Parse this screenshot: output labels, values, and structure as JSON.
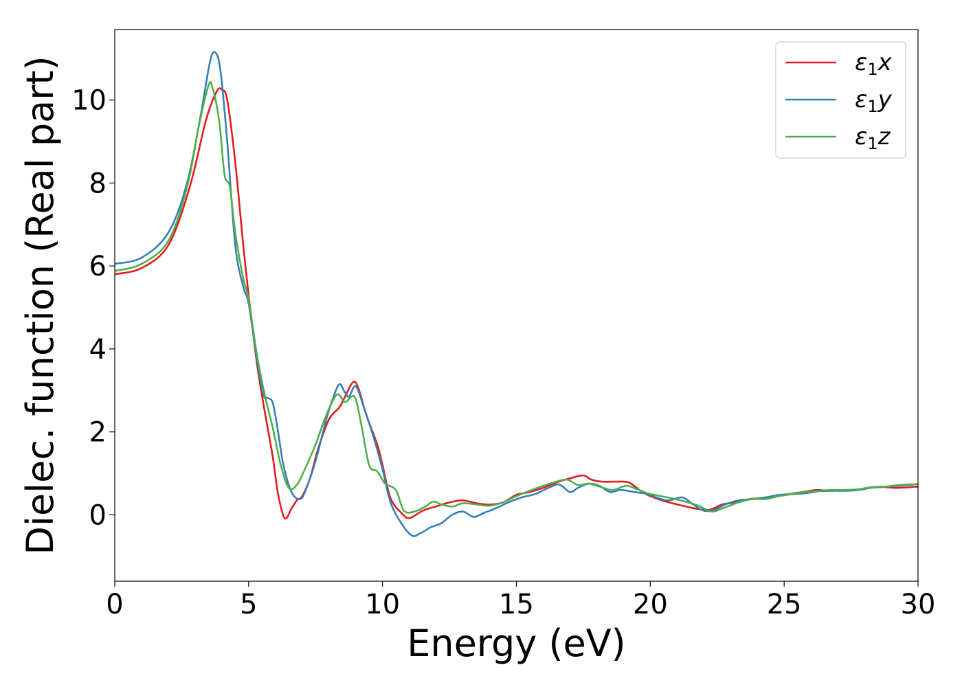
{
  "chart_data": {
    "type": "line",
    "title": "",
    "xlabel": "Energy (eV)",
    "ylabel": "Dielec. function (Real part)",
    "xlim": [
      0,
      30
    ],
    "ylim": [
      -1.6,
      11.7
    ],
    "xticks": [
      0,
      5,
      10,
      15,
      20,
      25,
      30
    ],
    "yticks": [
      0,
      2,
      4,
      6,
      8,
      10
    ],
    "grid": false,
    "legend_position": "top-right",
    "series": [
      {
        "name": "ε1x",
        "legend_base": "ε",
        "legend_sub": "1",
        "legend_suffix": "x",
        "color": "#e41a1c",
        "points": [
          [
            0,
            5.8
          ],
          [
            1,
            5.95
          ],
          [
            2,
            6.5
          ],
          [
            2.8,
            7.9
          ],
          [
            3.4,
            9.5
          ],
          [
            3.8,
            10.2
          ],
          [
            4.0,
            10.25
          ],
          [
            4.2,
            10.0
          ],
          [
            4.5,
            8.5
          ],
          [
            4.8,
            6.5
          ],
          [
            5.0,
            5.3
          ],
          [
            5.3,
            3.7
          ],
          [
            5.6,
            2.5
          ],
          [
            5.9,
            1.4
          ],
          [
            6.1,
            0.5
          ],
          [
            6.35,
            -0.08
          ],
          [
            6.6,
            0.15
          ],
          [
            6.8,
            0.35
          ],
          [
            7.0,
            0.45
          ],
          [
            7.3,
            0.9
          ],
          [
            7.6,
            1.6
          ],
          [
            8.0,
            2.3
          ],
          [
            8.4,
            2.6
          ],
          [
            8.6,
            2.85
          ],
          [
            8.9,
            3.2
          ],
          [
            9.1,
            3.05
          ],
          [
            9.4,
            2.4
          ],
          [
            9.8,
            1.7
          ],
          [
            10.0,
            1.2
          ],
          [
            10.3,
            0.4
          ],
          [
            10.7,
            0.05
          ],
          [
            11.0,
            -0.08
          ],
          [
            11.5,
            0.1
          ],
          [
            12.0,
            0.2
          ],
          [
            12.5,
            0.3
          ],
          [
            13.0,
            0.35
          ],
          [
            13.5,
            0.28
          ],
          [
            14.0,
            0.25
          ],
          [
            14.5,
            0.3
          ],
          [
            15.0,
            0.48
          ],
          [
            15.5,
            0.55
          ],
          [
            16.0,
            0.65
          ],
          [
            16.5,
            0.78
          ],
          [
            17.0,
            0.88
          ],
          [
            17.5,
            0.95
          ],
          [
            17.8,
            0.85
          ],
          [
            18.2,
            0.8
          ],
          [
            18.7,
            0.8
          ],
          [
            19.2,
            0.78
          ],
          [
            19.7,
            0.55
          ],
          [
            20.2,
            0.4
          ],
          [
            20.7,
            0.3
          ],
          [
            21.2,
            0.22
          ],
          [
            21.7,
            0.15
          ],
          [
            22.2,
            0.12
          ],
          [
            22.7,
            0.25
          ],
          [
            23.2,
            0.3
          ],
          [
            23.7,
            0.38
          ],
          [
            24.2,
            0.4
          ],
          [
            24.7,
            0.45
          ],
          [
            25.2,
            0.5
          ],
          [
            25.7,
            0.55
          ],
          [
            26.2,
            0.6
          ],
          [
            26.7,
            0.58
          ],
          [
            27.2,
            0.6
          ],
          [
            27.7,
            0.6
          ],
          [
            28.2,
            0.65
          ],
          [
            28.7,
            0.67
          ],
          [
            29.2,
            0.65
          ],
          [
            30,
            0.68
          ]
        ]
      },
      {
        "name": "ε1y",
        "legend_base": "ε",
        "legend_sub": "1",
        "legend_suffix": "y",
        "color": "#377eb8",
        "points": [
          [
            0,
            6.05
          ],
          [
            1,
            6.2
          ],
          [
            2,
            6.8
          ],
          [
            2.7,
            8.0
          ],
          [
            3.2,
            9.6
          ],
          [
            3.55,
            10.9
          ],
          [
            3.75,
            11.15
          ],
          [
            3.95,
            10.7
          ],
          [
            4.2,
            9.0
          ],
          [
            4.5,
            6.5
          ],
          [
            4.8,
            5.5
          ],
          [
            5.0,
            5.1
          ],
          [
            5.3,
            3.8
          ],
          [
            5.55,
            2.9
          ],
          [
            5.7,
            2.82
          ],
          [
            5.9,
            2.7
          ],
          [
            6.1,
            2.0
          ],
          [
            6.3,
            1.2
          ],
          [
            6.6,
            0.55
          ],
          [
            6.9,
            0.38
          ],
          [
            7.1,
            0.55
          ],
          [
            7.5,
            1.3
          ],
          [
            7.9,
            2.3
          ],
          [
            8.2,
            2.9
          ],
          [
            8.4,
            3.15
          ],
          [
            8.6,
            2.95
          ],
          [
            8.75,
            2.85
          ],
          [
            9.0,
            3.1
          ],
          [
            9.3,
            2.6
          ],
          [
            9.7,
            1.8
          ],
          [
            10.0,
            1.1
          ],
          [
            10.3,
            0.3
          ],
          [
            10.7,
            -0.2
          ],
          [
            11.1,
            -0.5
          ],
          [
            11.4,
            -0.45
          ],
          [
            11.8,
            -0.3
          ],
          [
            12.2,
            -0.2
          ],
          [
            12.6,
            0.0
          ],
          [
            13.0,
            0.08
          ],
          [
            13.4,
            -0.05
          ],
          [
            13.8,
            0.05
          ],
          [
            14.2,
            0.15
          ],
          [
            14.7,
            0.3
          ],
          [
            15.2,
            0.42
          ],
          [
            15.7,
            0.5
          ],
          [
            16.2,
            0.65
          ],
          [
            16.6,
            0.73
          ],
          [
            17.0,
            0.55
          ],
          [
            17.3,
            0.65
          ],
          [
            17.7,
            0.75
          ],
          [
            18.1,
            0.7
          ],
          [
            18.5,
            0.55
          ],
          [
            18.9,
            0.6
          ],
          [
            19.4,
            0.55
          ],
          [
            19.9,
            0.5
          ],
          [
            20.3,
            0.4
          ],
          [
            20.7,
            0.35
          ],
          [
            21.2,
            0.42
          ],
          [
            21.6,
            0.25
          ],
          [
            22.0,
            0.1
          ],
          [
            22.4,
            0.12
          ],
          [
            22.8,
            0.25
          ],
          [
            23.3,
            0.35
          ],
          [
            23.8,
            0.38
          ],
          [
            24.3,
            0.42
          ],
          [
            24.8,
            0.48
          ],
          [
            25.3,
            0.5
          ],
          [
            25.8,
            0.52
          ],
          [
            26.3,
            0.57
          ],
          [
            26.8,
            0.58
          ],
          [
            27.3,
            0.58
          ],
          [
            27.8,
            0.6
          ],
          [
            28.3,
            0.66
          ],
          [
            28.8,
            0.68
          ],
          [
            29.3,
            0.7
          ],
          [
            30,
            0.74
          ]
        ]
      },
      {
        "name": "ε1z",
        "legend_base": "ε",
        "legend_sub": "1",
        "legend_suffix": "z",
        "color": "#4daf4a",
        "points": [
          [
            0,
            5.88
          ],
          [
            1,
            6.05
          ],
          [
            2,
            6.6
          ],
          [
            2.7,
            7.9
          ],
          [
            3.15,
            9.4
          ],
          [
            3.5,
            10.35
          ],
          [
            3.65,
            10.3
          ],
          [
            3.9,
            9.5
          ],
          [
            4.1,
            8.2
          ],
          [
            4.3,
            7.9
          ],
          [
            4.5,
            6.8
          ],
          [
            4.8,
            5.7
          ],
          [
            5.0,
            5.2
          ],
          [
            5.3,
            3.9
          ],
          [
            5.6,
            2.9
          ],
          [
            5.9,
            2.1
          ],
          [
            6.2,
            1.2
          ],
          [
            6.5,
            0.65
          ],
          [
            6.8,
            0.72
          ],
          [
            7.1,
            1.1
          ],
          [
            7.5,
            1.7
          ],
          [
            7.9,
            2.4
          ],
          [
            8.3,
            2.9
          ],
          [
            8.6,
            2.72
          ],
          [
            8.95,
            2.85
          ],
          [
            9.2,
            2.2
          ],
          [
            9.5,
            1.2
          ],
          [
            9.8,
            1.05
          ],
          [
            10.1,
            0.75
          ],
          [
            10.5,
            0.6
          ],
          [
            10.8,
            0.1
          ],
          [
            11.2,
            0.08
          ],
          [
            11.6,
            0.2
          ],
          [
            11.9,
            0.32
          ],
          [
            12.2,
            0.25
          ],
          [
            12.6,
            0.2
          ],
          [
            13.0,
            0.28
          ],
          [
            13.5,
            0.25
          ],
          [
            14.0,
            0.22
          ],
          [
            14.5,
            0.3
          ],
          [
            15.0,
            0.45
          ],
          [
            15.5,
            0.58
          ],
          [
            16.0,
            0.7
          ],
          [
            16.5,
            0.8
          ],
          [
            16.9,
            0.85
          ],
          [
            17.3,
            0.72
          ],
          [
            17.7,
            0.75
          ],
          [
            18.1,
            0.68
          ],
          [
            18.6,
            0.6
          ],
          [
            19.1,
            0.7
          ],
          [
            19.5,
            0.62
          ],
          [
            19.9,
            0.52
          ],
          [
            20.4,
            0.45
          ],
          [
            20.8,
            0.4
          ],
          [
            21.3,
            0.32
          ],
          [
            21.8,
            0.22
          ],
          [
            22.3,
            0.08
          ],
          [
            22.8,
            0.18
          ],
          [
            23.3,
            0.3
          ],
          [
            23.8,
            0.38
          ],
          [
            24.3,
            0.38
          ],
          [
            24.8,
            0.45
          ],
          [
            25.3,
            0.5
          ],
          [
            25.8,
            0.55
          ],
          [
            26.3,
            0.58
          ],
          [
            26.8,
            0.6
          ],
          [
            27.3,
            0.6
          ],
          [
            27.8,
            0.62
          ],
          [
            28.3,
            0.67
          ],
          [
            28.8,
            0.68
          ],
          [
            29.3,
            0.72
          ],
          [
            30,
            0.74
          ]
        ]
      }
    ]
  }
}
